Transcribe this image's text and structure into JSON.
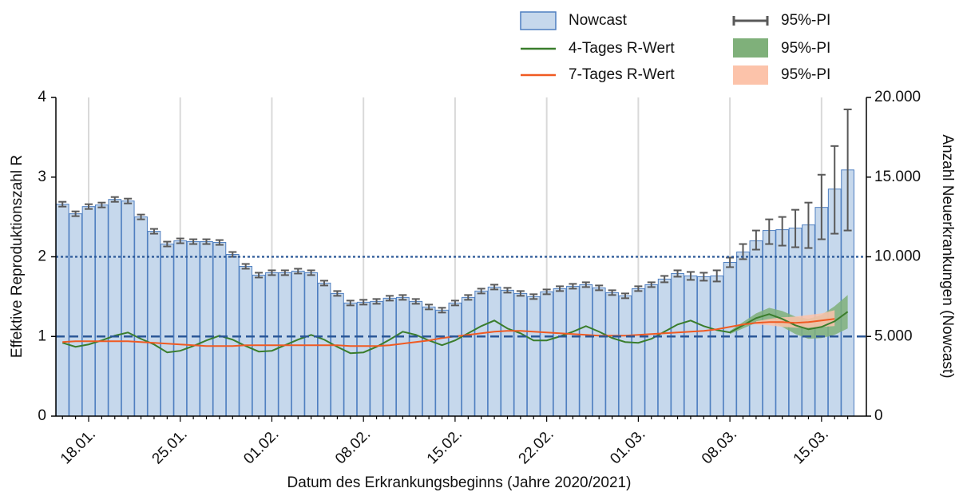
{
  "chart_data": {
    "type": "combo",
    "x_label": "Datum des Erkrankungsbeginns (Jahre 2020/2021)",
    "y_label": "Effektive Reproduktionszahl R",
    "y2_label": "Anzahl Neuerkrankungen (Nowcast)",
    "categories": [
      null,
      null,
      "18.01.",
      null,
      null,
      null,
      null,
      null,
      null,
      "25.01.",
      null,
      null,
      null,
      null,
      null,
      null,
      "01.02.",
      null,
      null,
      null,
      null,
      null,
      null,
      "08.02.",
      null,
      null,
      null,
      null,
      null,
      null,
      "15.02.",
      null,
      null,
      null,
      null,
      null,
      null,
      "22.02.",
      null,
      null,
      null,
      null,
      null,
      null,
      "01.03.",
      null,
      null,
      null,
      null,
      null,
      null,
      "08.03.",
      null,
      null,
      null,
      null,
      null,
      null,
      "15.03.",
      null,
      null
    ],
    "ylim": [
      0,
      4
    ],
    "yticks": [
      0,
      1,
      2,
      3,
      4
    ],
    "y2lim": [
      0,
      20000
    ],
    "y2ticks": [
      0,
      {
        "value": 5000,
        "label": "5.000"
      },
      {
        "value": 10000,
        "label": "10.000"
      },
      {
        "value": 15000,
        "label": "15.000"
      },
      {
        "value": 20000,
        "label": "20.000"
      }
    ],
    "grid": true,
    "reference_lines": [
      {
        "value": 2,
        "style": "dotted",
        "color": "#2b5797"
      },
      {
        "value": 1,
        "style": "dashed",
        "color": "#2b5797"
      }
    ],
    "series": [
      {
        "name": "Nowcast",
        "type": "bar",
        "axis": "y2",
        "color": "#c6d8ec",
        "edge_color": "#4f7fc0",
        "values": [
          13300,
          12700,
          13150,
          13250,
          13600,
          13500,
          12500,
          11600,
          10800,
          11000,
          10950,
          10950,
          10900,
          10150,
          9400,
          8850,
          9000,
          9000,
          9100,
          9000,
          8350,
          7700,
          7100,
          7150,
          7200,
          7400,
          7450,
          7200,
          6850,
          6650,
          7100,
          7450,
          7850,
          8100,
          7900,
          7700,
          7500,
          7800,
          8000,
          8150,
          8250,
          8050,
          7750,
          7550,
          8000,
          8250,
          8600,
          8950,
          8800,
          8750,
          8800,
          9650,
          10300,
          11000,
          11650,
          11700,
          11800,
          12000,
          13100,
          14250,
          15450
        ],
        "ci_name": "95%-PI",
        "ci_color": "#595959",
        "ci_low": [
          13150,
          12550,
          13000,
          13100,
          13450,
          13350,
          12350,
          11450,
          10650,
          10850,
          10800,
          10800,
          10750,
          10000,
          9250,
          8700,
          8850,
          8850,
          8950,
          8850,
          8200,
          7550,
          6950,
          7000,
          7050,
          7250,
          7300,
          7050,
          6700,
          6500,
          6950,
          7300,
          7700,
          7950,
          7750,
          7550,
          7350,
          7650,
          7850,
          8000,
          8100,
          7900,
          7600,
          7400,
          7850,
          8100,
          8400,
          8750,
          8550,
          8500,
          8450,
          9350,
          9850,
          10450,
          10800,
          10700,
          10600,
          10550,
          11100,
          11450,
          11650
        ],
        "ci_high": [
          13450,
          12850,
          13300,
          13400,
          13750,
          13650,
          12650,
          11750,
          10950,
          11150,
          11100,
          11100,
          11050,
          10300,
          9550,
          9000,
          9150,
          9150,
          9250,
          9150,
          8500,
          7850,
          7250,
          7300,
          7350,
          7550,
          7600,
          7350,
          7000,
          6800,
          7250,
          7600,
          8000,
          8250,
          8050,
          7850,
          7650,
          7950,
          8150,
          8300,
          8400,
          8200,
          7900,
          7700,
          8150,
          8400,
          8800,
          9150,
          9050,
          9000,
          9150,
          9950,
          10800,
          11650,
          12350,
          12500,
          12950,
          13400,
          15150,
          16950,
          19250
        ]
      },
      {
        "name": "4-Tages R-Wert",
        "type": "line",
        "color": "#3a7d2c",
        "values": [
          0.92,
          0.87,
          0.9,
          0.95,
          1.01,
          1.05,
          0.97,
          0.9,
          0.8,
          0.82,
          0.88,
          0.95,
          1.01,
          0.96,
          0.88,
          0.81,
          0.82,
          0.89,
          0.96,
          1.02,
          0.96,
          0.87,
          0.79,
          0.8,
          0.87,
          0.96,
          1.06,
          1.02,
          0.95,
          0.89,
          0.95,
          1.04,
          1.13,
          1.2,
          1.1,
          1.04,
          0.95,
          0.95,
          1.0,
          1.06,
          1.13,
          1.06,
          0.98,
          0.93,
          0.92,
          0.97,
          1.06,
          1.15,
          1.2,
          1.13,
          1.08,
          1.05,
          1.14,
          1.23,
          1.28,
          1.22,
          1.14,
          1.09,
          1.12,
          1.19,
          1.31
        ],
        "band_name": "95%-PI",
        "band_color": "#7fb07a",
        "band_low": [
          null,
          null,
          null,
          null,
          null,
          null,
          null,
          null,
          null,
          null,
          null,
          null,
          null,
          null,
          null,
          null,
          null,
          null,
          null,
          null,
          null,
          null,
          null,
          null,
          null,
          null,
          null,
          null,
          null,
          null,
          null,
          null,
          null,
          null,
          null,
          null,
          null,
          null,
          null,
          null,
          null,
          null,
          null,
          null,
          null,
          null,
          null,
          null,
          null,
          null,
          null,
          1.03,
          1.1,
          1.17,
          1.2,
          1.12,
          1.03,
          0.97,
          0.98,
          1.02,
          1.1
        ],
        "band_high": [
          null,
          null,
          null,
          null,
          null,
          null,
          null,
          null,
          null,
          null,
          null,
          null,
          null,
          null,
          null,
          null,
          null,
          null,
          null,
          null,
          null,
          null,
          null,
          null,
          null,
          null,
          null,
          null,
          null,
          null,
          null,
          null,
          null,
          null,
          null,
          null,
          null,
          null,
          null,
          null,
          null,
          null,
          null,
          null,
          null,
          null,
          null,
          null,
          null,
          null,
          null,
          1.07,
          1.18,
          1.29,
          1.36,
          1.32,
          1.25,
          1.22,
          1.27,
          1.38,
          1.52
        ]
      },
      {
        "name": "7-Tages R-Wert",
        "type": "line",
        "color": "#f05a22",
        "values": [
          0.93,
          0.94,
          0.94,
          0.94,
          0.94,
          0.94,
          0.93,
          0.92,
          0.91,
          0.9,
          0.89,
          0.88,
          0.88,
          0.88,
          0.89,
          0.89,
          0.89,
          0.89,
          0.89,
          0.89,
          0.89,
          0.89,
          0.88,
          0.88,
          0.88,
          0.89,
          0.91,
          0.93,
          0.95,
          0.98,
          1.0,
          1.02,
          1.04,
          1.06,
          1.07,
          1.07,
          1.06,
          1.05,
          1.04,
          1.03,
          1.02,
          1.01,
          1.01,
          1.01,
          1.02,
          1.03,
          1.04,
          1.05,
          1.06,
          1.07,
          1.09,
          1.12,
          1.15,
          1.17,
          1.18,
          1.18,
          1.17,
          1.18,
          1.2,
          1.22,
          null
        ],
        "band_name": "95%-PI",
        "band_color": "#fcc3aa",
        "band_low": [
          null,
          null,
          null,
          null,
          null,
          null,
          null,
          null,
          null,
          null,
          null,
          null,
          null,
          null,
          null,
          null,
          null,
          null,
          null,
          null,
          null,
          null,
          null,
          null,
          null,
          null,
          null,
          null,
          null,
          null,
          null,
          null,
          null,
          null,
          null,
          null,
          null,
          null,
          null,
          null,
          null,
          null,
          null,
          null,
          null,
          null,
          null,
          null,
          null,
          null,
          null,
          null,
          null,
          1.15,
          1.14,
          1.12,
          1.11,
          1.11,
          1.12,
          1.13,
          null
        ],
        "band_high": [
          null,
          null,
          null,
          null,
          null,
          null,
          null,
          null,
          null,
          null,
          null,
          null,
          null,
          null,
          null,
          null,
          null,
          null,
          null,
          null,
          null,
          null,
          null,
          null,
          null,
          null,
          null,
          null,
          null,
          null,
          null,
          null,
          null,
          null,
          null,
          null,
          null,
          null,
          null,
          null,
          null,
          null,
          null,
          null,
          null,
          null,
          null,
          null,
          null,
          null,
          null,
          null,
          null,
          1.19,
          1.22,
          1.24,
          1.25,
          1.27,
          1.29,
          1.33,
          null
        ]
      }
    ]
  }
}
